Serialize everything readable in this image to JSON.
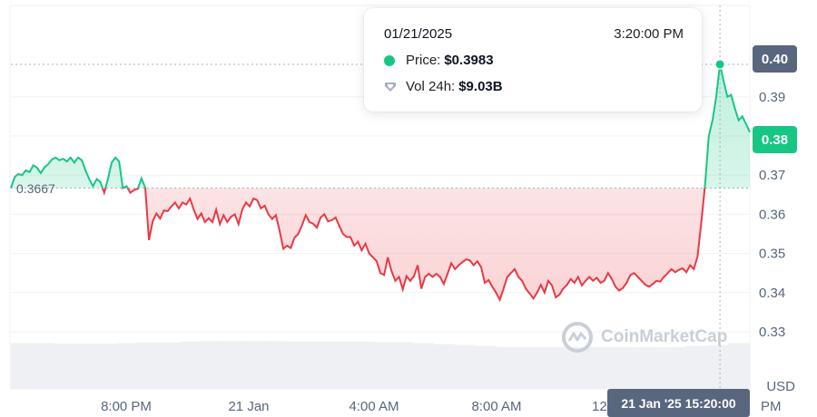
{
  "chart_data": {
    "type": "area",
    "baseline": 0.3667,
    "ylim": [
      0.327,
      0.402
    ],
    "y_ticks": [
      "0.39",
      "0.38",
      "0.37",
      "0.36",
      "0.35",
      "0.34",
      "0.33"
    ],
    "x_tick_labels": [
      "8:00 PM",
      "21 Jan",
      "4:00 AM",
      "8:00 AM",
      "12",
      "PM"
    ],
    "unit_label": "USD",
    "colors": {
      "up": "#16c784",
      "down": "#ea3943",
      "tag": "#58667e"
    },
    "series": [
      {
        "values": [
          0.3667,
          0.3695,
          0.3703,
          0.37,
          0.3712,
          0.3708,
          0.3725,
          0.3719,
          0.3705,
          0.372,
          0.3728,
          0.374,
          0.3745,
          0.3738,
          0.3742,
          0.3735,
          0.3745,
          0.3732,
          0.3745,
          0.3738,
          0.3712,
          0.369,
          0.3672,
          0.369,
          0.3682,
          0.3655,
          0.369,
          0.3732,
          0.3745,
          0.3735,
          0.3667,
          0.3672,
          0.3655,
          0.3662,
          0.3665,
          0.3692,
          0.3668,
          0.3534,
          0.3582,
          0.3602,
          0.3589,
          0.361,
          0.3608,
          0.362,
          0.363,
          0.3615,
          0.363,
          0.3625,
          0.364,
          0.3612,
          0.3588,
          0.3602,
          0.358,
          0.359,
          0.358,
          0.3612,
          0.3575,
          0.3598,
          0.358,
          0.3594,
          0.36,
          0.3575,
          0.3612,
          0.363,
          0.362,
          0.364,
          0.3636,
          0.3615,
          0.3622,
          0.36,
          0.3588,
          0.3598,
          0.3558,
          0.3512,
          0.352,
          0.3514,
          0.354,
          0.355,
          0.3572,
          0.3598,
          0.358,
          0.3576,
          0.3566,
          0.3592,
          0.36,
          0.3582,
          0.3585,
          0.3592,
          0.357,
          0.355,
          0.3542,
          0.3542,
          0.352,
          0.353,
          0.3508,
          0.3525,
          0.35,
          0.349,
          0.348,
          0.345,
          0.3445,
          0.349,
          0.3455,
          0.343,
          0.344,
          0.3408,
          0.3442,
          0.343,
          0.3442,
          0.347,
          0.341,
          0.344,
          0.3448,
          0.344,
          0.3448,
          0.344,
          0.3422,
          0.3448,
          0.3475,
          0.346,
          0.347,
          0.3478,
          0.3485,
          0.3482,
          0.347,
          0.348,
          0.3465,
          0.3425,
          0.3432,
          0.3415,
          0.34,
          0.3382,
          0.341,
          0.344,
          0.345,
          0.346,
          0.344,
          0.343,
          0.341,
          0.3398,
          0.3385,
          0.34,
          0.342,
          0.34,
          0.343,
          0.3418,
          0.3388,
          0.3395,
          0.341,
          0.342,
          0.3435,
          0.3425,
          0.344,
          0.3418,
          0.343,
          0.344,
          0.343,
          0.3438,
          0.3425,
          0.343,
          0.345,
          0.3435,
          0.3415,
          0.3405,
          0.3412,
          0.3425,
          0.3445,
          0.345,
          0.344,
          0.343,
          0.342,
          0.3415,
          0.3422,
          0.343,
          0.3428,
          0.344,
          0.345,
          0.346,
          0.3452,
          0.3458,
          0.3462,
          0.3452,
          0.347,
          0.346,
          0.3492,
          0.358,
          0.3675,
          0.38,
          0.384,
          0.39,
          0.3983,
          0.394,
          0.39,
          0.3905,
          0.387,
          0.384,
          0.385,
          0.383,
          0.381
        ]
      },
      {
        "name": "Vol 24h",
        "values": [
          0.92,
          0.92,
          0.91,
          0.91,
          0.91,
          0.92,
          0.93,
          0.93,
          0.95,
          0.96,
          0.96,
          0.96,
          0.96,
          0.95,
          0.95,
          0.95,
          0.95,
          0.94,
          0.94,
          0.92,
          0.9,
          0.88,
          0.86,
          0.84,
          0.84,
          0.84,
          0.84,
          0.84,
          0.84,
          0.84,
          0.84,
          0.84,
          0.86,
          0.88,
          0.92
        ]
      }
    ]
  },
  "tooltip": {
    "date": "01/21/2025",
    "time": "3:20:00 PM",
    "price_key": "Price:",
    "price_value": "$0.3983",
    "vol_key": "Vol 24h:",
    "vol_value": "$9.03B"
  },
  "tags": {
    "high": "0.40",
    "current": "0.38",
    "baseline": "0.3667",
    "time": "21 Jan '25 15:20:00"
  },
  "watermark": "CoinMarketCap",
  "icons": {
    "price": "green-dot-icon",
    "volume": "volume-shield-icon",
    "logo": "coinmarketcap-logo-icon"
  }
}
